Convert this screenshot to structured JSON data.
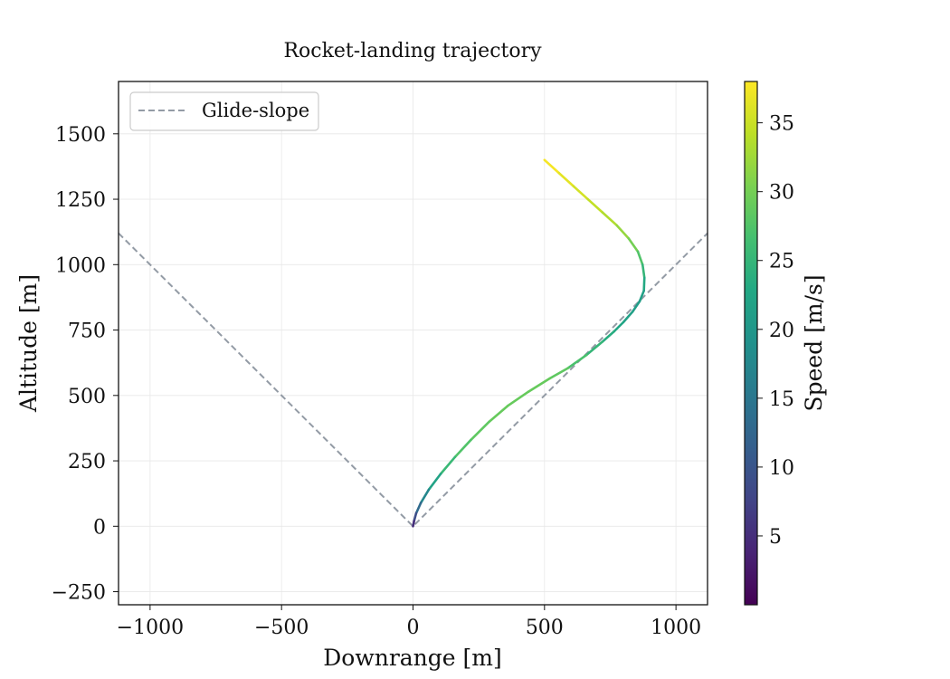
{
  "chart_data": {
    "type": "line",
    "title": "Rocket-landing trajectory",
    "xlabel": "Downrange [m]",
    "ylabel": "Altitude [m]",
    "xlim": [
      -1120,
      1120
    ],
    "ylim": [
      -300,
      1700
    ],
    "xticks": [
      -1000,
      -500,
      0,
      500,
      1000
    ],
    "xtick_labels": [
      "−1000",
      "−500",
      "0",
      "500",
      "1000"
    ],
    "yticks": [
      -250,
      0,
      250,
      500,
      750,
      1000,
      1250,
      1500
    ],
    "ytick_labels": [
      "−250",
      "0",
      "250",
      "500",
      "750",
      "1000",
      "1250",
      "1500"
    ],
    "grid": true,
    "legend": {
      "position": "upper-left",
      "entries": [
        "Glide-slope"
      ]
    },
    "glide_slope": {
      "name": "Glide-slope",
      "style": "dashed",
      "color": "#939ba5",
      "x": [
        -1120,
        0,
        1120
      ],
      "y": [
        1120,
        0,
        1120
      ]
    },
    "trajectory": {
      "colored_by": "speed",
      "points": [
        {
          "x": 500,
          "y": 1400,
          "speed": 38
        },
        {
          "x": 555,
          "y": 1350,
          "speed": 37
        },
        {
          "x": 610,
          "y": 1300,
          "speed": 36
        },
        {
          "x": 665,
          "y": 1250,
          "speed": 35
        },
        {
          "x": 720,
          "y": 1200,
          "speed": 34
        },
        {
          "x": 775,
          "y": 1150,
          "speed": 33
        },
        {
          "x": 820,
          "y": 1100,
          "speed": 31
        },
        {
          "x": 855,
          "y": 1050,
          "speed": 29
        },
        {
          "x": 873,
          "y": 1000,
          "speed": 26
        },
        {
          "x": 880,
          "y": 950,
          "speed": 24
        },
        {
          "x": 878,
          "y": 900,
          "speed": 22
        },
        {
          "x": 862,
          "y": 860,
          "speed": 21
        },
        {
          "x": 835,
          "y": 820,
          "speed": 21
        },
        {
          "x": 800,
          "y": 780,
          "speed": 22
        },
        {
          "x": 765,
          "y": 745,
          "speed": 23
        },
        {
          "x": 720,
          "y": 705,
          "speed": 24
        },
        {
          "x": 660,
          "y": 655,
          "speed": 26
        },
        {
          "x": 590,
          "y": 605,
          "speed": 28
        },
        {
          "x": 520,
          "y": 565,
          "speed": 29
        },
        {
          "x": 440,
          "y": 515,
          "speed": 29
        },
        {
          "x": 360,
          "y": 460,
          "speed": 29
        },
        {
          "x": 290,
          "y": 400,
          "speed": 29
        },
        {
          "x": 220,
          "y": 330,
          "speed": 28
        },
        {
          "x": 160,
          "y": 265,
          "speed": 27
        },
        {
          "x": 105,
          "y": 200,
          "speed": 24
        },
        {
          "x": 60,
          "y": 140,
          "speed": 20
        },
        {
          "x": 30,
          "y": 90,
          "speed": 15
        },
        {
          "x": 12,
          "y": 50,
          "speed": 11
        },
        {
          "x": 4,
          "y": 20,
          "speed": 7
        },
        {
          "x": 0,
          "y": 0,
          "speed": 3
        }
      ]
    },
    "colorbar": {
      "label": "Speed [m/s]",
      "colormap": "viridis",
      "range": [
        0,
        38
      ],
      "ticks": [
        5,
        10,
        15,
        20,
        25,
        30,
        35
      ],
      "tick_labels": [
        "5",
        "10",
        "15",
        "20",
        "25",
        "30",
        "35"
      ]
    }
  }
}
